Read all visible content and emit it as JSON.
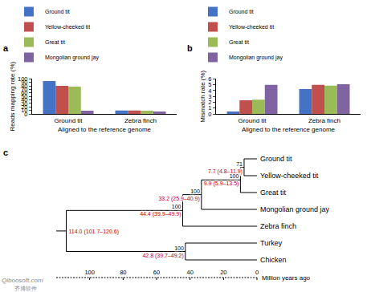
{
  "chart_data": [
    {
      "type": "bar",
      "panel_label": "a",
      "x_label": "Aligned to the reference genome",
      "y_label": "Reads mapping rate (%)",
      "categories": [
        "Ground tit",
        "Zebra finch"
      ],
      "series": [
        {
          "name": "Ground tit",
          "color": "#4472c4",
          "values": [
            94,
            9.5
          ]
        },
        {
          "name": "Yellow-cheeked tit",
          "color": "#c0504d",
          "values": [
            80,
            9.5
          ]
        },
        {
          "name": "Great tit",
          "color": "#9bbb59",
          "values": [
            78,
            9
          ]
        },
        {
          "name": "Mongolian ground jay",
          "color": "#8064a2",
          "values": [
            9,
            7
          ]
        }
      ],
      "ylim": [
        0,
        100
      ],
      "yticks": [
        0,
        10,
        20,
        30,
        40,
        50,
        60,
        70,
        80,
        90,
        100
      ],
      "grid": false,
      "legend": "top"
    },
    {
      "type": "bar",
      "panel_label": "b",
      "x_label": "Aligned to the reference genome",
      "y_label": "Mismatch rate (%)",
      "categories": [
        "Ground tit",
        "Zebra finch"
      ],
      "series": [
        {
          "name": "Ground tit",
          "color": "#4472c4",
          "values": [
            0.4,
            4.25
          ]
        },
        {
          "name": "Yellow-cheeked tit",
          "color": "#c0504d",
          "values": [
            2.35,
            5.0
          ]
        },
        {
          "name": "Great tit",
          "color": "#9bbb59",
          "values": [
            2.45,
            4.85
          ]
        },
        {
          "name": "Mongolian ground jay",
          "color": "#8064a2",
          "values": [
            5.0,
            5.1
          ]
        }
      ],
      "ylim": [
        0,
        6
      ],
      "yticks": [
        0,
        1,
        2,
        3,
        4,
        5,
        6
      ],
      "grid": false,
      "legend": "top"
    }
  ],
  "tree": {
    "panel_label": "c",
    "axis": {
      "label": "Million years ago",
      "range": [
        120,
        0
      ],
      "ticks": [
        100,
        80,
        60,
        40,
        20,
        0
      ]
    },
    "root": {
      "age": 114.0,
      "label": "114.0 (101.7–120.6)",
      "children": [
        {
          "age": 44.4,
          "label": "44.4 (39.9–49.9)",
          "support": 100,
          "children": [
            {
              "age": 33.2,
              "label": "33.2 (25.9–40.9)",
              "support": 100,
              "children": [
                {
                  "age": 9.9,
                  "label": "9.9 (5.9–13.5)",
                  "support": 100,
                  "children": [
                    {
                      "age": 7.7,
                      "label": "7.7 (4.8–11.9)",
                      "support": 71,
                      "children": [
                        {
                          "name": "Ground tit",
                          "age": 0
                        },
                        {
                          "name": "Yellow-cheeked tit",
                          "age": 0
                        }
                      ]
                    },
                    {
                      "name": "Great tit",
                      "age": 0
                    }
                  ]
                },
                {
                  "name": "Mongolian ground jay",
                  "age": 0
                }
              ]
            },
            {
              "name": "Zebra finch",
              "age": 0
            }
          ]
        },
        {
          "age": 42.8,
          "label": "42.8 (39.7–49.2)",
          "support": 100,
          "children": [
            {
              "name": "Turkey",
              "age": 0
            },
            {
              "name": "Chicken",
              "age": 0
            }
          ]
        }
      ]
    }
  },
  "watermark": [
    "Qiboosoft.com",
    "齐博软件"
  ]
}
